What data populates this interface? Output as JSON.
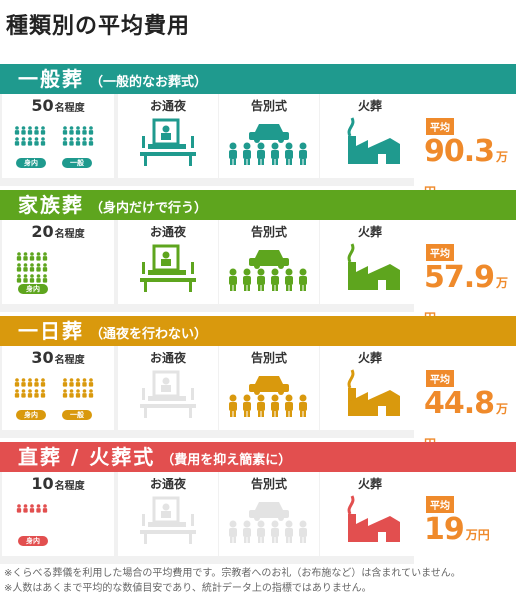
{
  "title": "種類別の平均費用",
  "column_labels": {
    "wake": "お通夜",
    "ceremony": "告別式",
    "cremation": "火葬"
  },
  "avg_label": "平均",
  "attendee_unit": "名程度",
  "sections": [
    {
      "name": "一般葬",
      "sub": "（一般的なお葬式）",
      "color": "#1f9a8e",
      "attendees": "50",
      "badges": [
        "身内",
        "一般"
      ],
      "has_wake": true,
      "avg_value": "90.3",
      "avg_unit": "万円"
    },
    {
      "name": "家族葬",
      "sub": "（身内だけで行う）",
      "color": "#5ea51e",
      "attendees": "20",
      "badges": [
        "身内"
      ],
      "has_wake": true,
      "avg_value": "57.9",
      "avg_unit": "万円"
    },
    {
      "name": "一日葬",
      "sub": "（通夜を行わない）",
      "color": "#d9990d",
      "attendees": "30",
      "badges": [
        "身内",
        "一般"
      ],
      "has_wake": false,
      "avg_value": "44.8",
      "avg_unit": "万円"
    },
    {
      "name": "直葬 / 火葬式",
      "sub": "（費用を抑え簡素に）",
      "color": "#e24f4f",
      "attendees": "10",
      "badges": [
        "身内"
      ],
      "has_wake": false,
      "has_ceremony": false,
      "avg_value": "19",
      "avg_unit": "万円"
    }
  ],
  "notes": [
    "※くらべる葬儀を利用した場合の平均費用です。宗教者へのお礼（お布施など）は含まれていません。",
    "※人数はあくまで平均的な数値目安であり、統計データ上の指標ではありません。"
  ]
}
